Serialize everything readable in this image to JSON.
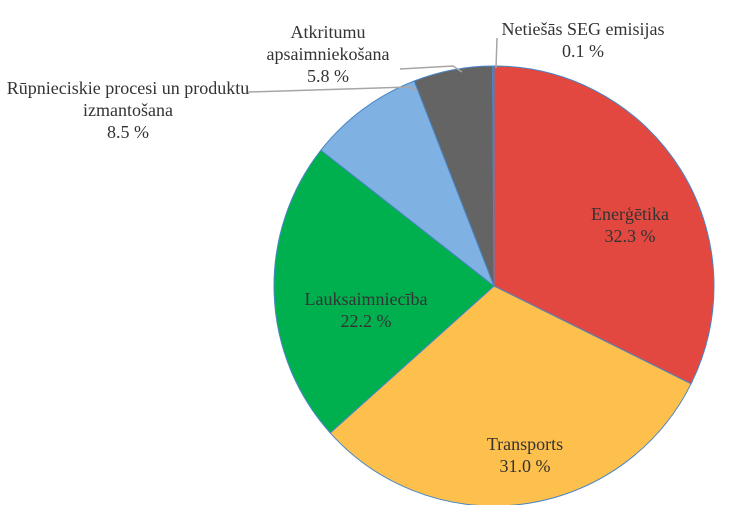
{
  "chart_data": {
    "type": "pie",
    "categories": [
      "Enerģētika",
      "Transports",
      "Lauksaimniecība",
      "Rūpnieciskie procesi un produktu izmantošana",
      "Atkritumu apsaimniekošana",
      "Netiešās SEG emisijas"
    ],
    "values": [
      32.3,
      31.0,
      22.2,
      8.5,
      5.8,
      0.1
    ],
    "value_labels": [
      "32.3 %",
      "31.0 %",
      "22.2 %",
      "8.5 %",
      "5.8 %",
      "0.1 %"
    ],
    "colors": [
      "#e2483f",
      "#fec04c",
      "#00b04f",
      "#7fb2e3",
      "#646464",
      "#4472c4"
    ]
  }
}
